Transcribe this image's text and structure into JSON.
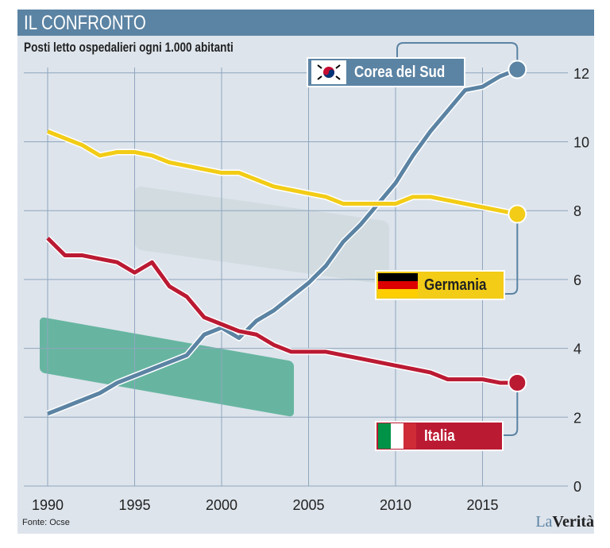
{
  "header": {
    "title": "IL CONFRONTO"
  },
  "footer": {
    "source": "Fonte: Ocse",
    "logo": "LaVerità"
  },
  "colors": {
    "korea": "#5b83a3",
    "germany": "#f2cc16",
    "italy": "#bb1a33",
    "header": "#5b83a3",
    "background": "#dde4ec"
  },
  "chart_data": {
    "type": "line",
    "title": "Posti letto ospedalieri ogni 1.000 abitanti",
    "xlabel": "",
    "ylabel": "",
    "xlim": [
      1990,
      2017
    ],
    "ylim": [
      0,
      12
    ],
    "xticks": [
      1990,
      1995,
      2000,
      2005,
      2010,
      2015
    ],
    "yticks": [
      0,
      2,
      4,
      6,
      8,
      10,
      12
    ],
    "grid": true,
    "legend": "direct labels at right",
    "x": [
      1990,
      1991,
      1992,
      1993,
      1994,
      1995,
      1996,
      1997,
      1998,
      1999,
      2000,
      2001,
      2002,
      2003,
      2004,
      2005,
      2006,
      2007,
      2008,
      2009,
      2010,
      2011,
      2012,
      2013,
      2014,
      2015,
      2016,
      2017
    ],
    "series": [
      {
        "name": "Corea del Sud",
        "flag": "south-korea-flag",
        "values": [
          2.1,
          2.3,
          2.5,
          2.7,
          3.0,
          3.2,
          3.4,
          3.6,
          3.8,
          4.4,
          4.6,
          4.3,
          4.8,
          5.1,
          5.5,
          5.9,
          6.4,
          7.1,
          7.6,
          8.2,
          8.8,
          9.6,
          10.3,
          10.9,
          11.5,
          11.6,
          11.9,
          12.1
        ]
      },
      {
        "name": "Germania",
        "flag": "germany-flag",
        "values": [
          10.3,
          10.1,
          9.9,
          9.6,
          9.7,
          9.7,
          9.6,
          9.4,
          9.3,
          9.2,
          9.1,
          9.1,
          8.9,
          8.7,
          8.6,
          8.5,
          8.4,
          8.2,
          8.2,
          8.2,
          8.2,
          8.4,
          8.4,
          8.3,
          8.2,
          8.1,
          8.0,
          7.9
        ]
      },
      {
        "name": "Italia",
        "flag": "italy-flag",
        "values": [
          7.2,
          6.7,
          6.7,
          6.6,
          6.5,
          6.2,
          6.5,
          5.8,
          5.5,
          4.9,
          4.7,
          4.5,
          4.4,
          4.1,
          3.9,
          3.9,
          3.9,
          3.8,
          3.7,
          3.6,
          3.5,
          3.4,
          3.3,
          3.1,
          3.1,
          3.1,
          3.0,
          3.0
        ]
      }
    ]
  }
}
